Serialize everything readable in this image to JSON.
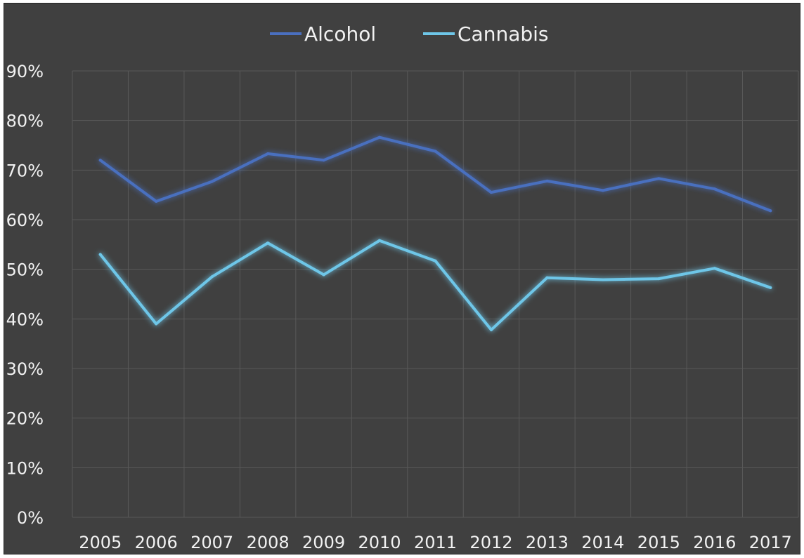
{
  "chart_data": {
    "type": "line",
    "x": [
      "2005",
      "2006",
      "2007",
      "2008",
      "2009",
      "2010",
      "2011",
      "2012",
      "2013",
      "2014",
      "2015",
      "2016",
      "2017"
    ],
    "series": [
      {
        "name": "Alcohol",
        "color": "#4a6fbf",
        "values": [
          72,
          63.7,
          67.7,
          73.3,
          72.0,
          76.6,
          73.8,
          65.5,
          67.8,
          65.9,
          68.3,
          66.2,
          61.8
        ]
      },
      {
        "name": "Cannabis",
        "color": "#6ec6e8",
        "values": [
          53,
          39,
          48.5,
          55.3,
          48.9,
          55.8,
          51.7,
          37.8,
          48.3,
          47.9,
          48.1,
          50.2,
          46.3
        ]
      }
    ],
    "y_ticks": [
      "0%",
      "10%",
      "20%",
      "30%",
      "40%",
      "50%",
      "60%",
      "70%",
      "80%",
      "90%"
    ],
    "ylim": [
      0,
      90
    ],
    "grid": true,
    "legend_position": "top",
    "background": "#404040",
    "gridline_color": "#595959"
  }
}
